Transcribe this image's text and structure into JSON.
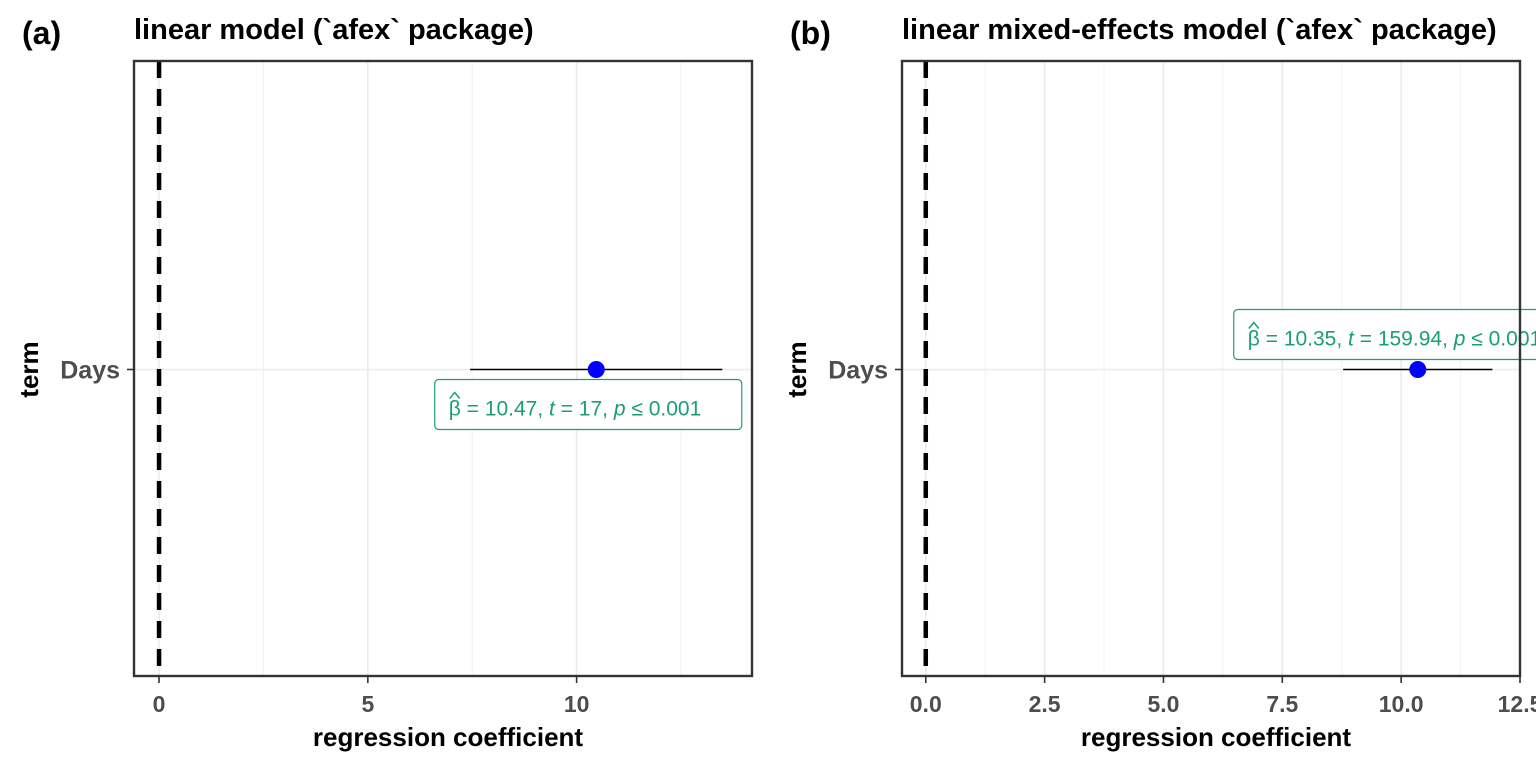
{
  "chart_data": [
    {
      "type": "scatter",
      "panel_tag": "(a)",
      "title": "linear model (`afex` package)",
      "xlabel": "regression coefficient",
      "ylabel": "term",
      "xlim": [
        -0.6,
        14.2
      ],
      "xticks": [
        0,
        5,
        10
      ],
      "xtick_labels": [
        "0",
        "5",
        "10"
      ],
      "minor_xticks": [
        2.5,
        7.5,
        12.5
      ],
      "categories": [
        "Days"
      ],
      "reference_line": 0,
      "grid": true,
      "points": [
        {
          "term": "Days",
          "estimate": 10.47,
          "ci_low": 7.45,
          "ci_high": 13.49
        }
      ],
      "annotation": {
        "beta": "10.47",
        "t": "17",
        "p": "0.001",
        "position": "below"
      },
      "colors": {
        "point": "#0000ff",
        "label": "#1b9e77",
        "reference": "#000000"
      }
    },
    {
      "type": "scatter",
      "panel_tag": "(b)",
      "title": "linear mixed-effects model (`afex` package)",
      "xlabel": "regression coefficient",
      "ylabel": "term",
      "xlim": [
        -0.5,
        12.5
      ],
      "xticks": [
        0,
        2.5,
        5,
        7.5,
        10,
        12.5
      ],
      "xtick_labels": [
        "0.0",
        "2.5",
        "5.0",
        "7.5",
        "10.0",
        "12.5"
      ],
      "minor_xticks": [
        1.25,
        3.75,
        6.25,
        8.75,
        11.25
      ],
      "categories": [
        "Days"
      ],
      "reference_line": 0,
      "grid": true,
      "points": [
        {
          "term": "Days",
          "estimate": 10.35,
          "ci_low": 8.78,
          "ci_high": 11.92
        }
      ],
      "annotation": {
        "beta": "10.35",
        "t": "159.94",
        "p": "0.001",
        "position": "above"
      },
      "colors": {
        "point": "#0000ff",
        "label": "#1b9e77",
        "reference": "#000000"
      }
    }
  ]
}
